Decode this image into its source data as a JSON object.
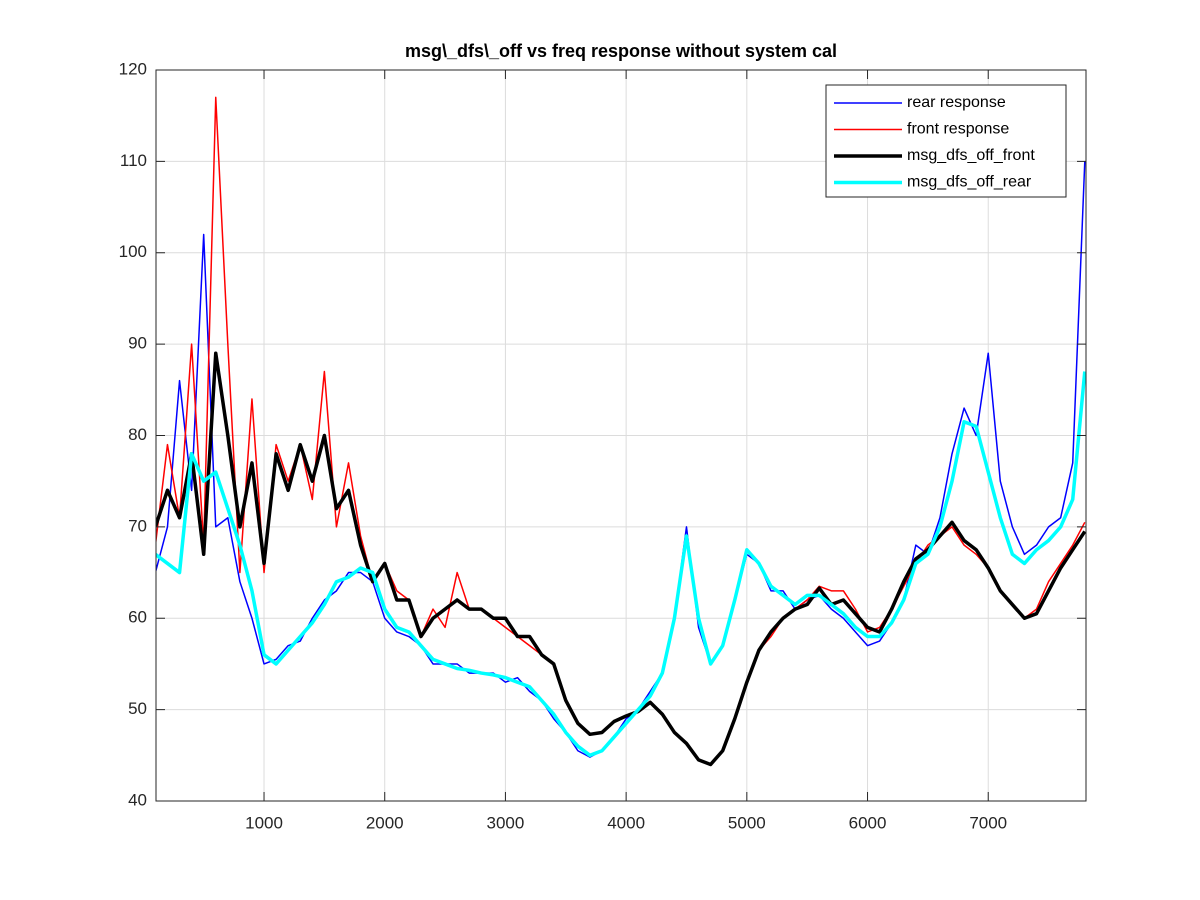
{
  "chart_data": {
    "type": "line",
    "title": "msg\\_dfs\\_off vs freq response without system cal",
    "x": [
      100,
      200,
      300,
      400,
      500,
      600,
      700,
      800,
      900,
      1000,
      1100,
      1200,
      1300,
      1400,
      1500,
      1600,
      1700,
      1800,
      1900,
      2000,
      2100,
      2200,
      2300,
      2400,
      2500,
      2600,
      2700,
      2800,
      2900,
      3000,
      3100,
      3200,
      3300,
      3400,
      3500,
      3600,
      3700,
      3800,
      3900,
      4000,
      4100,
      4200,
      4300,
      4400,
      4500,
      4600,
      4700,
      4800,
      4900,
      5000,
      5100,
      5200,
      5300,
      5400,
      5500,
      5600,
      5700,
      5800,
      5900,
      6000,
      6100,
      6200,
      6300,
      6400,
      6500,
      6600,
      6700,
      6800,
      6900,
      7000,
      7100,
      7200,
      7300,
      7400,
      7500,
      7600,
      7700,
      7800
    ],
    "series": [
      {
        "name": "rear response",
        "color": "#0000ff",
        "width": 1.5,
        "values": [
          65,
          70,
          86,
          74,
          102,
          70,
          71,
          64,
          60,
          55,
          55.5,
          57,
          57.5,
          60,
          62,
          63,
          65,
          65,
          64,
          60,
          58.5,
          58,
          57,
          55,
          55,
          55,
          54,
          54,
          54,
          53,
          53.5,
          52,
          51,
          49,
          47.5,
          45.5,
          44.8,
          45.5,
          47,
          49,
          50,
          52,
          54,
          60,
          70,
          59,
          55,
          57,
          62,
          67,
          66,
          63,
          63,
          61,
          62,
          62.5,
          61,
          60,
          58.5,
          57,
          57.5,
          59.5,
          62,
          68,
          67,
          71,
          78,
          83,
          80,
          89,
          75,
          70,
          67,
          68,
          70,
          71,
          77,
          110
        ]
      },
      {
        "name": "front response",
        "color": "#ff0000",
        "width": 1.5,
        "values": [
          68,
          79,
          71,
          90,
          68,
          117,
          90,
          65,
          84,
          65,
          79,
          75,
          79,
          73,
          87,
          70,
          77,
          69,
          64,
          66,
          63,
          62,
          58,
          61,
          59,
          65,
          61,
          61,
          60,
          59,
          58,
          57,
          56,
          55,
          51,
          48.5,
          47.3,
          47.5,
          48.7,
          49.3,
          49.8,
          50.8,
          49.5,
          47.5,
          46.3,
          44.5,
          44,
          45.5,
          49,
          53,
          56.5,
          58,
          60,
          61,
          62,
          63.5,
          63,
          63,
          61,
          58.5,
          59,
          61,
          63.5,
          66,
          68,
          69,
          70,
          68,
          67,
          65.5,
          63,
          61.5,
          60,
          61,
          64,
          66,
          68,
          70.5
        ]
      },
      {
        "name": "msg_dfs_off_front",
        "color": "#000000",
        "width": 3.5,
        "values": [
          70,
          74,
          71,
          78,
          67,
          89,
          80,
          70,
          77,
          66,
          78,
          74,
          79,
          75,
          80,
          72,
          74,
          68,
          64,
          66,
          62,
          62,
          58,
          60,
          61,
          62,
          61,
          61,
          60,
          60,
          58,
          58,
          56,
          55,
          51,
          48.5,
          47.3,
          47.5,
          48.7,
          49.3,
          49.8,
          50.8,
          49.5,
          47.5,
          46.3,
          44.5,
          44,
          45.5,
          49,
          53,
          56.5,
          58.5,
          60,
          61,
          61.5,
          63.3,
          61.5,
          62,
          60.5,
          59,
          58.5,
          61,
          64,
          66.5,
          67.5,
          69,
          70.5,
          68.5,
          67.5,
          65.5,
          63,
          61.5,
          60,
          60.5,
          63,
          65.5,
          67.5,
          69.5
        ]
      },
      {
        "name": "msg_dfs_off_rear",
        "color": "#00ffff",
        "width": 3.5,
        "values": [
          67,
          66,
          65,
          78,
          75,
          76,
          72,
          68,
          63,
          56,
          55,
          56.5,
          58,
          59.5,
          61.5,
          64,
          64.5,
          65.5,
          65,
          61,
          59,
          58.5,
          57,
          55.5,
          55,
          54.5,
          54.3,
          54,
          53.8,
          53.5,
          53,
          52.5,
          51,
          49.5,
          47.5,
          46,
          45,
          45.5,
          47,
          48.5,
          50,
          51.5,
          54,
          60,
          69,
          60,
          55,
          57,
          62,
          67.5,
          66,
          63.5,
          62.5,
          61.5,
          62.5,
          62.5,
          61.5,
          60.5,
          59,
          58,
          58,
          59.5,
          62,
          66,
          67,
          70,
          75,
          81.5,
          81,
          76,
          71,
          67,
          66,
          67.5,
          68.5,
          70,
          73,
          87
        ]
      }
    ],
    "xlim": [
      105,
      7810
    ],
    "ylim": [
      40,
      120
    ],
    "xticks": [
      1000,
      2000,
      3000,
      4000,
      5000,
      6000,
      7000
    ],
    "yticks": [
      40,
      50,
      60,
      70,
      80,
      90,
      100,
      110,
      120
    ],
    "grid": true,
    "legend": "northeast"
  }
}
